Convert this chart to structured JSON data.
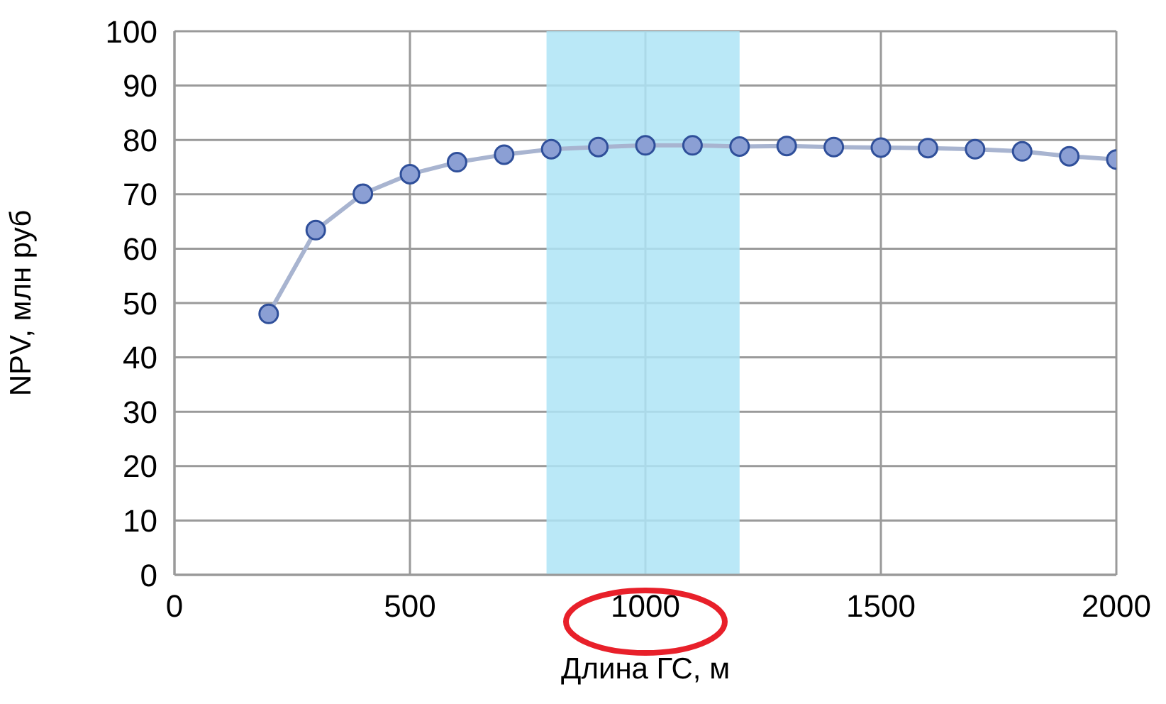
{
  "chart_data": {
    "type": "line",
    "xlabel": "Длина ГС, м",
    "ylabel": "NPV, млн руб",
    "x": [
      200,
      300,
      400,
      500,
      600,
      700,
      800,
      900,
      1000,
      1100,
      1200,
      1300,
      1400,
      1500,
      1600,
      1700,
      1800,
      1900,
      2000
    ],
    "series": [
      {
        "color": "#8b9fd4",
        "values": [
          48.0,
          63.4,
          70.1,
          73.7,
          75.9,
          77.3,
          78.3,
          78.7,
          79.0,
          79.0,
          78.8,
          78.9,
          78.7,
          78.6,
          78.5,
          78.3,
          77.9,
          77.0,
          76.4
        ]
      }
    ],
    "xlim": [
      0,
      2000
    ],
    "xticks": [
      0,
      500,
      1000,
      1500,
      2000
    ],
    "ylim": [
      0,
      100
    ],
    "yticks": [
      0,
      10,
      20,
      30,
      40,
      50,
      60,
      70,
      80,
      90,
      100
    ],
    "bands": [
      {
        "axis": "x",
        "from": 790,
        "to": 1200,
        "color": "#aee4f6"
      }
    ],
    "grid": true,
    "marker": "circle",
    "line_style": "solid"
  }
}
